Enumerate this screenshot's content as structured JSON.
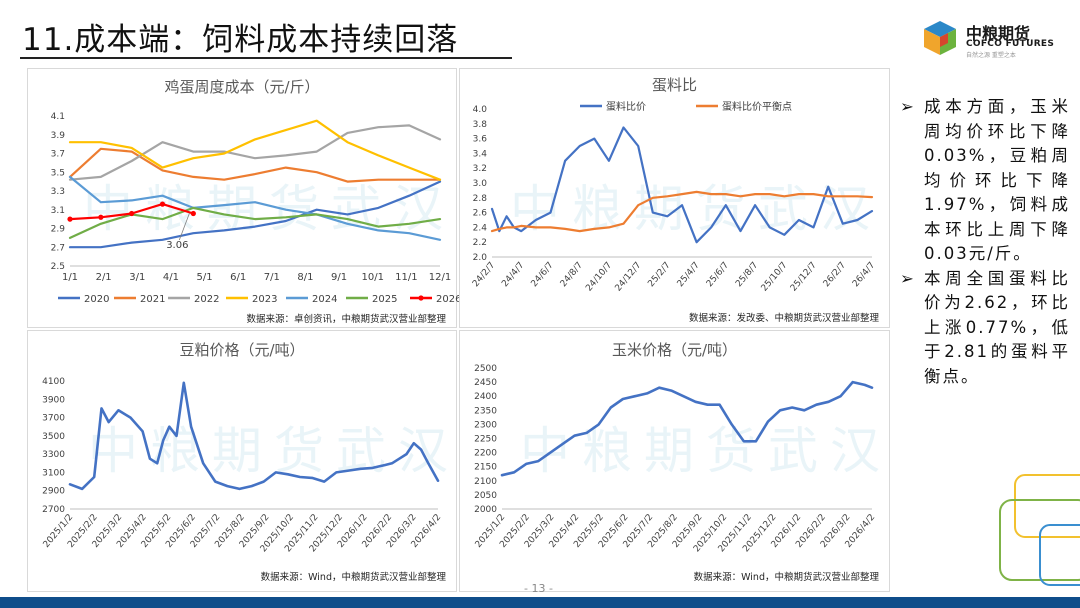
{
  "header": {
    "title": "11.成本端：饲料成本持续回落",
    "logo_cn": "中粮期货",
    "logo_en": "COFCO FUTURES",
    "logo_sub": "自然之源  重塑之本"
  },
  "watermark": "中粮期货武汉",
  "sidebar": {
    "bullet": "➢",
    "items": [
      "成本方面，玉米周均价环比下降0.03%，豆粕周均价环比下降1.97%，饲料成本环比上周下降0.03元/斤。",
      "本周全国蛋料比价为2.62，环比上涨0.77%，低于2.81的蛋料平衡点。"
    ]
  },
  "page_number": "- 13 -",
  "colors": {
    "blue": "#4472c4",
    "orange": "#ed7d31",
    "gray": "#a5a5a5",
    "yellow": "#ffc000",
    "lightblue": "#5b9bd5",
    "green": "#70ad47",
    "red": "#ff0000"
  },
  "chart_data": [
    {
      "id": "egg_cost",
      "type": "line",
      "title": "鸡蛋周度成本（元/斤）",
      "source": "数据来源：卓创资讯，中粮期货武汉营业部整理",
      "ylim": [
        2.5,
        4.1
      ],
      "yticks": [
        "2.5",
        "2.7",
        "2.9",
        "3.1",
        "3.3",
        "3.5",
        "3.7",
        "3.9",
        "4.1"
      ],
      "xlabels": [
        "1/1",
        "2/1",
        "3/1",
        "4/1",
        "5/1",
        "6/1",
        "7/1",
        "8/1",
        "9/1",
        "10/1",
        "11/1",
        "12/1"
      ],
      "x": [
        0,
        1,
        2,
        3,
        4,
        5,
        6,
        7,
        8,
        9,
        10,
        11,
        12
      ],
      "annotation": {
        "text": "3.06"
      },
      "series": [
        {
          "name": "2020",
          "color": "#4472c4",
          "values": [
            2.7,
            2.7,
            2.75,
            2.78,
            2.85,
            2.88,
            2.92,
            2.98,
            3.1,
            3.05,
            3.12,
            3.25,
            3.4
          ]
        },
        {
          "name": "2021",
          "color": "#ed7d31",
          "values": [
            3.45,
            3.75,
            3.72,
            3.52,
            3.45,
            3.42,
            3.48,
            3.55,
            3.5,
            3.4,
            3.42,
            3.42,
            3.42
          ]
        },
        {
          "name": "2022",
          "color": "#a5a5a5",
          "values": [
            3.42,
            3.45,
            3.62,
            3.82,
            3.72,
            3.72,
            3.65,
            3.68,
            3.72,
            3.92,
            3.98,
            4.0,
            3.85
          ]
        },
        {
          "name": "2023",
          "color": "#ffc000",
          "values": [
            3.82,
            3.82,
            3.76,
            3.55,
            3.65,
            3.7,
            3.85,
            3.95,
            4.05,
            3.82,
            3.68,
            3.55,
            3.42
          ]
        },
        {
          "name": "2024",
          "color": "#5b9bd5",
          "values": [
            3.45,
            3.18,
            3.2,
            3.25,
            3.12,
            3.15,
            3.18,
            3.1,
            3.05,
            2.95,
            2.88,
            2.85,
            2.78
          ]
        },
        {
          "name": "2025",
          "color": "#70ad47",
          "values": [
            2.8,
            2.95,
            3.05,
            3.0,
            3.12,
            3.05,
            3.0,
            3.02,
            3.05,
            3.0,
            2.92,
            2.95,
            3.0
          ]
        },
        {
          "name": "2026",
          "color": "#ff0000",
          "values": [
            3.0,
            3.02,
            3.06,
            3.16,
            3.06,
            null,
            null,
            null,
            null,
            null,
            null,
            null,
            null
          ]
        }
      ]
    },
    {
      "id": "egg_feed_ratio",
      "type": "line",
      "title": "蛋料比",
      "source": "数据来源：发改委、中粮期货武汉营业部整理",
      "ylim": [
        2.0,
        4.0
      ],
      "yticks": [
        "2.0",
        "2.2",
        "2.4",
        "2.6",
        "2.8",
        "3.0",
        "3.2",
        "3.4",
        "3.6",
        "3.8",
        "4.0"
      ],
      "xlabels": [
        "24/2/7",
        "24/4/7",
        "24/6/7",
        "24/8/7",
        "24/10/7",
        "24/12/7",
        "25/2/7",
        "25/4/7",
        "25/6/7",
        "25/8/7",
        "25/10/7",
        "25/12/7",
        "26/2/7",
        "26/4/7"
      ],
      "x": [
        0,
        0.25,
        0.5,
        0.75,
        1,
        1.5,
        2,
        2.5,
        3,
        3.5,
        4,
        4.5,
        5,
        5.5,
        6,
        6.5,
        7,
        7.5,
        8,
        8.5,
        9,
        9.5,
        10,
        10.5,
        11,
        11.5,
        12,
        12.5,
        13
      ],
      "series": [
        {
          "name": "蛋料比价",
          "color": "#4472c4",
          "values": [
            2.65,
            2.35,
            2.55,
            2.4,
            2.35,
            2.5,
            2.6,
            3.3,
            3.5,
            3.6,
            3.3,
            3.75,
            3.5,
            2.6,
            2.55,
            2.7,
            2.2,
            2.4,
            2.7,
            2.35,
            2.7,
            2.4,
            2.3,
            2.5,
            2.4,
            2.95,
            2.45,
            2.5,
            2.62
          ]
        },
        {
          "name": "蛋料比价平衡点",
          "color": "#ed7d31",
          "values": [
            2.35,
            2.38,
            2.4,
            2.4,
            2.42,
            2.4,
            2.4,
            2.38,
            2.35,
            2.38,
            2.4,
            2.45,
            2.7,
            2.8,
            2.82,
            2.85,
            2.88,
            2.85,
            2.85,
            2.82,
            2.85,
            2.85,
            2.82,
            2.85,
            2.85,
            2.82,
            2.82,
            2.82,
            2.81
          ]
        }
      ]
    },
    {
      "id": "soymeal_price",
      "type": "line",
      "title": "豆粕价格（元/吨）",
      "source": "数据来源：Wind，中粮期货武汉营业部整理",
      "ylim": [
        2700,
        4100
      ],
      "yticks": [
        "2700",
        "2900",
        "3100",
        "3300",
        "3500",
        "3700",
        "3900",
        "4100"
      ],
      "xlabels": [
        "2025/1/2",
        "2025/2/2",
        "2025/3/2",
        "2025/4/2",
        "2025/5/2",
        "2025/6/2",
        "2025/7/2",
        "2025/8/2",
        "2025/9/2",
        "2025/10/2",
        "2025/11/2",
        "2025/12/2",
        "2026/1/2",
        "2026/2/2",
        "2026/3/2",
        "2026/4/2"
      ],
      "x": [
        0,
        0.5,
        1,
        1.3,
        1.6,
        2,
        2.5,
        3,
        3.3,
        3.6,
        3.85,
        4.1,
        4.4,
        4.7,
        5,
        5.5,
        6,
        6.5,
        7,
        7.5,
        8,
        8.5,
        9,
        9.5,
        10,
        10.5,
        11,
        11.5,
        12,
        12.5,
        13,
        13.3,
        13.6,
        13.9,
        14.2,
        14.5,
        14.8,
        15.2
      ],
      "series": [
        {
          "name": "豆粕价格",
          "color": "#4472c4",
          "values": [
            2970,
            2920,
            3050,
            3800,
            3650,
            3780,
            3700,
            3550,
            3250,
            3200,
            3450,
            3600,
            3500,
            4080,
            3600,
            3200,
            3000,
            2950,
            2920,
            2950,
            3000,
            3100,
            3080,
            3050,
            3040,
            3000,
            3100,
            3120,
            3140,
            3150,
            3180,
            3200,
            3250,
            3300,
            3420,
            3350,
            3200,
            3010
          ]
        }
      ]
    },
    {
      "id": "corn_price",
      "type": "line",
      "title": "玉米价格（元/吨）",
      "source": "数据来源：Wind，中粮期货武汉营业部整理",
      "ylim": [
        2000,
        2500
      ],
      "yticks": [
        "2000",
        "2050",
        "2100",
        "2150",
        "2200",
        "2250",
        "2300",
        "2350",
        "2400",
        "2450",
        "2500"
      ],
      "xlabels": [
        "2025/1/2",
        "2025/2/2",
        "2025/3/2",
        "2025/4/2",
        "2025/5/2",
        "2025/6/2",
        "2025/7/2",
        "2025/8/2",
        "2025/9/2",
        "2025/10/2",
        "2025/11/2",
        "2025/12/2",
        "2026/1/2",
        "2026/2/2",
        "2026/3/2",
        "2026/4/2"
      ],
      "x": [
        0,
        0.5,
        1,
        1.5,
        2,
        2.5,
        3,
        3.5,
        4,
        4.5,
        5,
        5.5,
        6,
        6.5,
        7,
        7.5,
        8,
        8.5,
        9,
        9.5,
        10,
        10.5,
        11,
        11.5,
        12,
        12.5,
        13,
        13.5,
        14,
        14.5,
        15,
        15.3
      ],
      "series": [
        {
          "name": "玉米价格",
          "color": "#4472c4",
          "values": [
            2120,
            2130,
            2160,
            2170,
            2200,
            2230,
            2260,
            2270,
            2300,
            2360,
            2390,
            2400,
            2410,
            2430,
            2420,
            2400,
            2380,
            2370,
            2370,
            2300,
            2240,
            2240,
            2310,
            2350,
            2360,
            2350,
            2370,
            2380,
            2400,
            2450,
            2440,
            2430
          ]
        }
      ]
    }
  ]
}
